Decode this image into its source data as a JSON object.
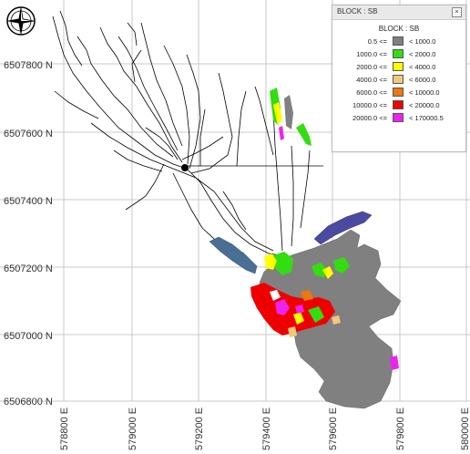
{
  "legend": {
    "title": "BLOCK : SB",
    "heading": "BLOCK : SB",
    "close_glyph": "×",
    "rows": [
      {
        "min": "0.5 <=",
        "max": "< 1000.0",
        "color": "#808080"
      },
      {
        "min": "1000.0 <=",
        "max": "< 2000.0",
        "color": "#33dd11"
      },
      {
        "min": "2000.0 <=",
        "max": "< 4000.0",
        "color": "#ffff00"
      },
      {
        "min": "4000.0 <=",
        "max": "< 6000.0",
        "color": "#f5c77a"
      },
      {
        "min": "6000.0 <=",
        "max": "< 10000.0",
        "color": "#ee7711"
      },
      {
        "min": "10000.0 <=",
        "max": "< 20000.0",
        "color": "#ee0000"
      },
      {
        "min": "20000.0 <=",
        "max": "< 170000.5",
        "color": "#ee22ee"
      }
    ]
  },
  "axes": {
    "northing_labels": [
      "6507800 N",
      "6507600 N",
      "6507400 N",
      "6507200 N",
      "6507000 N",
      "6506800 N"
    ],
    "easting_labels": [
      "578800 E",
      "579000 E",
      "579200 E",
      "579400 E",
      "579600 E",
      "579800 E",
      "580000 E"
    ]
  },
  "colors": {
    "gray": "#808080",
    "green": "#33dd11",
    "yellow": "#ffff00",
    "tan": "#f5c77a",
    "orange": "#ee7711",
    "red": "#ee0000",
    "magenta": "#ee22ee",
    "steel_blue": "#4a6f94",
    "purple_blue": "#4a4aa0"
  },
  "icons": {
    "compass": "compass-rose-icon"
  }
}
